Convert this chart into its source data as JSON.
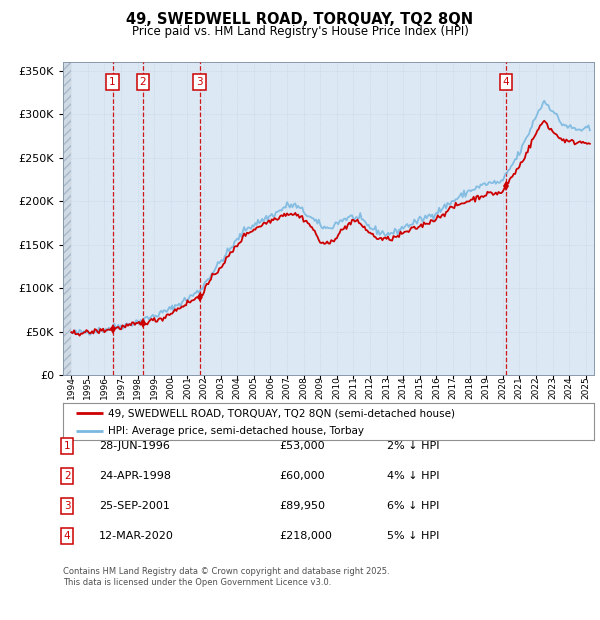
{
  "title": "49, SWEDWELL ROAD, TORQUAY, TQ2 8QN",
  "subtitle": "Price paid vs. HM Land Registry's House Price Index (HPI)",
  "sales": [
    {
      "date": 1996.49,
      "price": 53000,
      "label": "1"
    },
    {
      "date": 1998.31,
      "price": 60000,
      "label": "2"
    },
    {
      "date": 2001.73,
      "price": 89950,
      "label": "3"
    },
    {
      "date": 2020.19,
      "price": 218000,
      "label": "4"
    }
  ],
  "legend_line1": "49, SWEDWELL ROAD, TORQUAY, TQ2 8QN (semi-detached house)",
  "legend_line2": "HPI: Average price, semi-detached house, Torbay",
  "table": [
    {
      "num": "1",
      "date": "28-JUN-1996",
      "price": "£53,000",
      "pct": "2% ↓ HPI"
    },
    {
      "num": "2",
      "date": "24-APR-1998",
      "price": "£60,000",
      "pct": "4% ↓ HPI"
    },
    {
      "num": "3",
      "date": "25-SEP-2001",
      "price": "£89,950",
      "pct": "6% ↓ HPI"
    },
    {
      "num": "4",
      "date": "12-MAR-2020",
      "price": "£218,000",
      "pct": "5% ↓ HPI"
    }
  ],
  "footnote": "Contains HM Land Registry data © Crown copyright and database right 2025.\nThis data is licensed under the Open Government Licence v3.0.",
  "ylim": [
    0,
    360000
  ],
  "xlim_start": 1993.5,
  "xlim_end": 2025.5,
  "hpi_color": "#7bb8e0",
  "price_color": "#cc0000",
  "vline_color": "#cc0000",
  "bg_color": "#dce9f5",
  "grid_color": "#c0cfe0",
  "box_color": "#cc0000"
}
